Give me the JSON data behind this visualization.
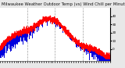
{
  "title": "Milwaukee Weather Outdoor Temp (vs) Wind Chill per Minute (Last 24 Hours)",
  "background_color": "#e8e8e8",
  "plot_bg_color": "#ffffff",
  "bar_color": "#0000dd",
  "line_color": "#ff0000",
  "grid_color": "#888888",
  "ylim": [
    -15,
    50
  ],
  "yticks": [
    0,
    10,
    20,
    30,
    40
  ],
  "ytick_labels": [
    "0",
    "10",
    "20",
    "30",
    "40"
  ],
  "n_points": 1440,
  "n_grid_lines": 4,
  "title_fontsize": 3.8,
  "tick_fontsize": 3.0,
  "figsize": [
    1.6,
    0.87
  ],
  "dpi": 100
}
